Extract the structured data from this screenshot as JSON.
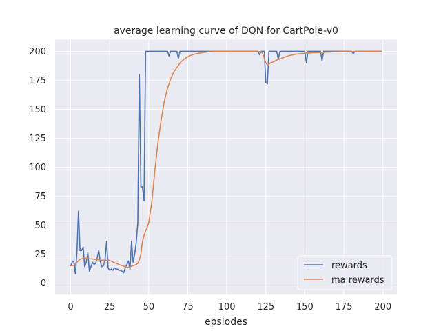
{
  "chart_data": {
    "type": "line",
    "title": "average learning curve of DQN for CartPole-v0",
    "xlabel": "epsiodes",
    "ylabel": "",
    "xlim": [
      -9.95,
      208.95
    ],
    "ylim": [
      -10,
      210
    ],
    "xticks": [
      0,
      25,
      50,
      75,
      100,
      125,
      150,
      175,
      200
    ],
    "yticks": [
      0,
      25,
      50,
      75,
      100,
      125,
      150,
      175,
      200
    ],
    "grid": true,
    "legend_position": "lower right",
    "series": [
      {
        "name": "rewards",
        "color": "#4c72b0",
        "x": [
          0,
          1,
          2,
          3,
          4,
          5,
          6,
          7,
          8,
          9,
          10,
          11,
          12,
          13,
          14,
          15,
          16,
          17,
          18,
          19,
          20,
          21,
          22,
          23,
          24,
          25,
          26,
          27,
          28,
          29,
          30,
          31,
          32,
          33,
          34,
          35,
          36,
          37,
          38,
          39,
          40,
          41,
          42,
          43,
          44,
          45,
          46,
          47,
          48,
          49,
          50,
          51,
          52,
          53,
          54,
          55,
          56,
          57,
          58,
          59,
          60,
          61,
          62,
          63,
          64,
          65,
          66,
          67,
          68,
          69,
          70,
          71,
          72,
          73,
          74,
          75,
          76,
          77,
          78,
          79,
          80,
          81,
          82,
          83,
          84,
          85,
          86,
          87,
          88,
          89,
          90,
          91,
          92,
          93,
          94,
          95,
          96,
          97,
          98,
          99,
          100,
          101,
          102,
          103,
          104,
          105,
          106,
          107,
          108,
          109,
          110,
          111,
          112,
          113,
          114,
          115,
          116,
          117,
          118,
          119,
          120,
          121,
          122,
          123,
          124,
          125,
          126,
          127,
          128,
          129,
          130,
          131,
          132,
          133,
          134,
          135,
          136,
          137,
          138,
          139,
          140,
          141,
          142,
          143,
          144,
          145,
          146,
          147,
          148,
          149,
          150,
          151,
          152,
          153,
          154,
          155,
          156,
          157,
          158,
          159,
          160,
          161,
          162,
          163,
          164,
          165,
          166,
          167,
          168,
          169,
          170,
          171,
          172,
          173,
          174,
          175,
          176,
          177,
          178,
          179,
          180,
          181,
          182,
          183,
          184,
          185,
          186,
          187,
          188,
          189,
          190,
          191,
          192,
          193,
          194,
          195,
          196,
          197,
          198,
          199
        ],
        "values": [
          15,
          18,
          19,
          8,
          26,
          62,
          28,
          28,
          31,
          14,
          18,
          26,
          10,
          14,
          18,
          16,
          17,
          22,
          28,
          18,
          14,
          15,
          20,
          36,
          13,
          11,
          12,
          11,
          13,
          12,
          12,
          11,
          11,
          10,
          9,
          13,
          16,
          19,
          12,
          36,
          18,
          25,
          35,
          52,
          180,
          83,
          83,
          71,
          200,
          200,
          200,
          200,
          200,
          200,
          200,
          200,
          200,
          200,
          200,
          200,
          200,
          200,
          200,
          196,
          200,
          200,
          200,
          200,
          200,
          194,
          200,
          200,
          200,
          200,
          200,
          200,
          200,
          200,
          200,
          200,
          200,
          200,
          200,
          200,
          200,
          200,
          200,
          200,
          200,
          200,
          200,
          200,
          200,
          200,
          200,
          200,
          200,
          200,
          200,
          200,
          200,
          200,
          200,
          200,
          200,
          200,
          200,
          200,
          200,
          200,
          200,
          200,
          200,
          200,
          200,
          200,
          200,
          200,
          200,
          200,
          200,
          197,
          200,
          200,
          200,
          173,
          172,
          200,
          200,
          200,
          200,
          200,
          200,
          193,
          200,
          200,
          200,
          200,
          200,
          200,
          200,
          200,
          200,
          200,
          200,
          200,
          200,
          200,
          200,
          200,
          200,
          190,
          200,
          200,
          200,
          200,
          200,
          200,
          200,
          200,
          200,
          192,
          200,
          200,
          200,
          200,
          200,
          200,
          200,
          200,
          200,
          200,
          200,
          200,
          200,
          200,
          200,
          200,
          200,
          200,
          200,
          198,
          200,
          200,
          200,
          200,
          200,
          200,
          200,
          200,
          200,
          200,
          200,
          200,
          200,
          200,
          200,
          200,
          200,
          200
        ]
      },
      {
        "name": "ma rewards",
        "color": "#dd8452",
        "x": [
          0,
          2,
          4,
          6,
          8,
          10,
          12,
          14,
          16,
          18,
          20,
          22,
          24,
          26,
          28,
          30,
          32,
          34,
          36,
          38,
          40,
          42,
          43,
          44,
          45,
          46,
          47,
          48,
          49,
          50,
          52,
          54,
          56,
          58,
          60,
          62,
          64,
          66,
          68,
          70,
          72,
          74,
          76,
          78,
          80,
          82,
          84,
          86,
          88,
          90,
          92,
          94,
          96,
          98,
          100,
          104,
          108,
          112,
          116,
          120,
          121,
          122,
          123,
          124,
          125,
          126,
          128,
          130,
          132,
          134,
          136,
          138,
          140,
          144,
          148,
          152,
          156,
          160,
          164,
          168,
          172,
          176,
          180,
          186,
          192,
          199
        ],
        "values": [
          15,
          15.3,
          18,
          20.5,
          21.3,
          21.5,
          21,
          20.7,
          20.2,
          20,
          19.8,
          19.5,
          20,
          18.8,
          17.6,
          16.5,
          15.4,
          14.5,
          13.5,
          14,
          15,
          16,
          17,
          20,
          25,
          36,
          41,
          45,
          48,
          52,
          70,
          98,
          122,
          141,
          157,
          168,
          176,
          182,
          186,
          190,
          192.5,
          194.5,
          196,
          197,
          197.8,
          198.3,
          198.8,
          199.2,
          199.5,
          199.7,
          199.8,
          199.9,
          199.95,
          200,
          200,
          200,
          200,
          200,
          200,
          199.7,
          199.7,
          199.7,
          198,
          194,
          190,
          188,
          190,
          191,
          192.5,
          193.5,
          194.5,
          195.5,
          196.3,
          197.5,
          198,
          198.5,
          198.8,
          199,
          199.3,
          199.5,
          199.6,
          199.7,
          199.8,
          199.9,
          200,
          200
        ]
      }
    ]
  }
}
